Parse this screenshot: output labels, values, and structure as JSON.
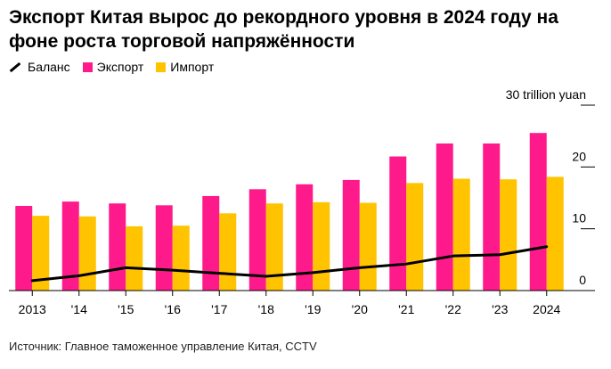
{
  "title": "Экспорт Китая вырос до рекордного уровня в 2024 году на фоне роста торговой напряжённости",
  "source": "Источник: Главное таможенное управление Китая, CCTV",
  "colors": {
    "balance": "#000000",
    "export": "#ff1a8c",
    "import": "#ffc300"
  },
  "legend": [
    {
      "name": "Баланс",
      "type": "line",
      "color": "#000000"
    },
    {
      "name": "Экспорт",
      "type": "bar",
      "color": "#ff1a8c"
    },
    {
      "name": "Импорт",
      "type": "bar",
      "color": "#ffc300"
    }
  ],
  "chart_data": {
    "type": "bar",
    "categories": [
      "2013",
      "'14",
      "'15",
      "'16",
      "'17",
      "'18",
      "'19",
      "'20",
      "'21",
      "'22",
      "'23",
      "2024"
    ],
    "series": [
      {
        "name": "Экспорт",
        "type": "bar",
        "values": [
          13.7,
          14.4,
          14.1,
          13.8,
          15.3,
          16.4,
          17.2,
          17.9,
          21.7,
          23.8,
          23.8,
          25.5
        ]
      },
      {
        "name": "Импорт",
        "type": "bar",
        "values": [
          12.1,
          12.0,
          10.4,
          10.5,
          12.5,
          14.1,
          14.3,
          14.2,
          17.4,
          18.1,
          18.0,
          18.4
        ]
      },
      {
        "name": "Баланс",
        "type": "line",
        "values": [
          1.6,
          2.4,
          3.7,
          3.3,
          2.8,
          2.3,
          2.9,
          3.7,
          4.3,
          5.6,
          5.8,
          7.1
        ]
      }
    ],
    "y_ticks": [
      {
        "value": 0,
        "label": "0"
      },
      {
        "value": 10,
        "label": "10"
      },
      {
        "value": 20,
        "label": "20"
      },
      {
        "value": 30,
        "label": "30 trillion yuan"
      }
    ],
    "ylim": [
      0,
      30
    ],
    "grid": false,
    "legend_position": "top-left"
  }
}
